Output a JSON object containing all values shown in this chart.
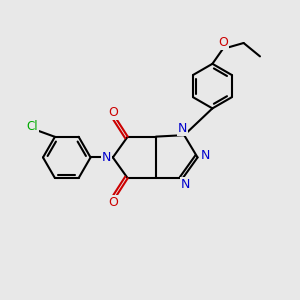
{
  "background_color": "#e8e8e8",
  "bond_color": "#000000",
  "nitrogen_color": "#0000cc",
  "oxygen_color": "#cc0000",
  "chlorine_color": "#00aa00",
  "bond_width": 1.5,
  "figsize": [
    3.0,
    3.0
  ],
  "dpi": 100,
  "xlim": [
    0,
    10
  ],
  "ylim": [
    0,
    10
  ]
}
